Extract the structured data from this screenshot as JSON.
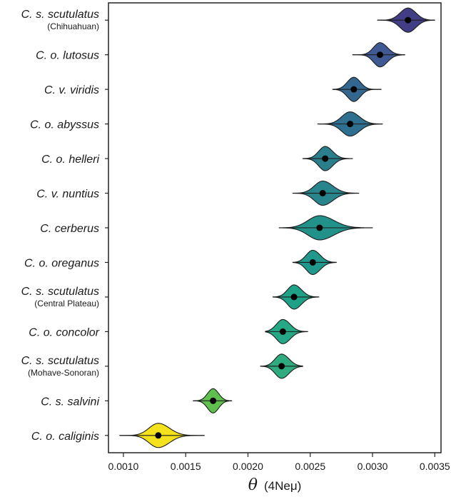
{
  "chart_data": {
    "type": "violin",
    "xlabel_symbol": "θ",
    "xlabel_text": "(4Neμ)",
    "xlim": [
      0.00088,
      0.00355
    ],
    "xticks": [
      0.001,
      0.0015,
      0.002,
      0.0025,
      0.003,
      0.0035
    ],
    "xtick_labels": [
      "0.0010",
      "0.0015",
      "0.0020",
      "0.0025",
      "0.0030",
      "0.0035"
    ],
    "grid": false,
    "series": [
      {
        "label": "C. s. scutulatus",
        "sublabel": "(Chihuahuan)",
        "median": 0.003285,
        "min": 0.00304,
        "max": 0.0035,
        "q_low": 0.0032,
        "q_high": 0.00337,
        "color": "#423e86"
      },
      {
        "label": "C. o. lutosus",
        "sublabel": "",
        "median": 0.00306,
        "min": 0.00284,
        "max": 0.00326,
        "q_low": 0.00299,
        "q_high": 0.00314,
        "color": "#3f5a93"
      },
      {
        "label": "C. v. viridis",
        "sublabel": "",
        "median": 0.00285,
        "min": 0.00268,
        "max": 0.00307,
        "q_low": 0.00278,
        "q_high": 0.00292,
        "color": "#33678f"
      },
      {
        "label": "C. o. abyssus",
        "sublabel": "",
        "median": 0.00282,
        "min": 0.00256,
        "max": 0.00308,
        "q_low": 0.00273,
        "q_high": 0.00292,
        "color": "#2f6f8f"
      },
      {
        "label": "C. o. helleri",
        "sublabel": "",
        "median": 0.00262,
        "min": 0.00244,
        "max": 0.00284,
        "q_low": 0.00255,
        "q_high": 0.0027,
        "color": "#2b7f8d"
      },
      {
        "label": "C. v. nuntius",
        "sublabel": "",
        "median": 0.0026,
        "min": 0.00236,
        "max": 0.00289,
        "q_low": 0.00251,
        "q_high": 0.00271,
        "color": "#28858c"
      },
      {
        "label": "C. cerberus",
        "sublabel": "",
        "median": 0.002575,
        "min": 0.00225,
        "max": 0.003,
        "q_low": 0.00245,
        "q_high": 0.00273,
        "color": "#22918a"
      },
      {
        "label": "C. o. oreganus",
        "sublabel": "",
        "median": 0.00252,
        "min": 0.00236,
        "max": 0.00271,
        "q_low": 0.00245,
        "q_high": 0.0026,
        "color": "#20988b"
      },
      {
        "label": "C. s. scutulatus",
        "sublabel": "(Central Plateau)",
        "median": 0.00237,
        "min": 0.0022,
        "max": 0.00257,
        "q_low": 0.0023,
        "q_high": 0.00245,
        "color": "#1fa188"
      },
      {
        "label": "C. o. concolor",
        "sublabel": "",
        "median": 0.00228,
        "min": 0.00214,
        "max": 0.00248,
        "q_low": 0.00221,
        "q_high": 0.00236,
        "color": "#26a785"
      },
      {
        "label": "C. s. scutulatus",
        "sublabel": "(Mohave-Sonoran)",
        "median": 0.00227,
        "min": 0.0021,
        "max": 0.00244,
        "q_low": 0.0022,
        "q_high": 0.00235,
        "color": "#2fab80"
      },
      {
        "label": "C. s. salvini",
        "sublabel": "",
        "median": 0.00172,
        "min": 0.00156,
        "max": 0.00187,
        "q_low": 0.00166,
        "q_high": 0.00178,
        "color": "#5fc050"
      },
      {
        "label": "C. o. caliginis",
        "sublabel": "",
        "median": 0.00128,
        "min": 0.00097,
        "max": 0.00165,
        "q_low": 0.00118,
        "q_high": 0.0014,
        "color": "#f4e21c"
      }
    ]
  }
}
